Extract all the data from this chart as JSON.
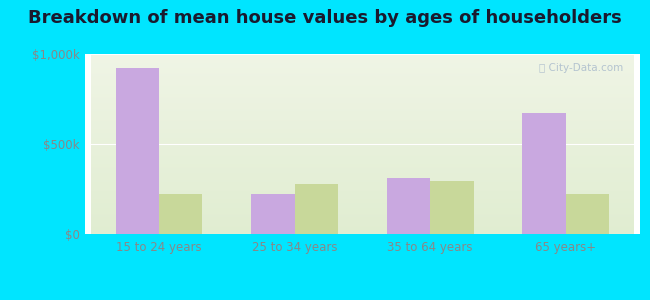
{
  "title": "Breakdown of mean house values by ages of householders",
  "categories": [
    "15 to 24 years",
    "25 to 34 years",
    "35 to 64 years",
    "65 years+"
  ],
  "watford_city": [
    925000,
    225000,
    310000,
    675000
  ],
  "north_dakota": [
    225000,
    280000,
    295000,
    225000
  ],
  "watford_color": "#c9a8e0",
  "nd_color": "#c8d89a",
  "bar_width": 0.32,
  "ylim": [
    0,
    1000000
  ],
  "yticks": [
    0,
    500000,
    1000000
  ],
  "ytick_labels": [
    "$0",
    "$500k",
    "$1,000k"
  ],
  "background_outer": "#00e5ff",
  "bg_top_left": "#f0f5e8",
  "bg_top_right": "#f5f5f0",
  "bg_bottom_left": "#e8f0d8",
  "bg_bottom_right": "#f0f5e8",
  "title_fontsize": 13,
  "tick_fontsize": 8.5,
  "grid_color": "#ffffff",
  "tick_color": "#888888"
}
